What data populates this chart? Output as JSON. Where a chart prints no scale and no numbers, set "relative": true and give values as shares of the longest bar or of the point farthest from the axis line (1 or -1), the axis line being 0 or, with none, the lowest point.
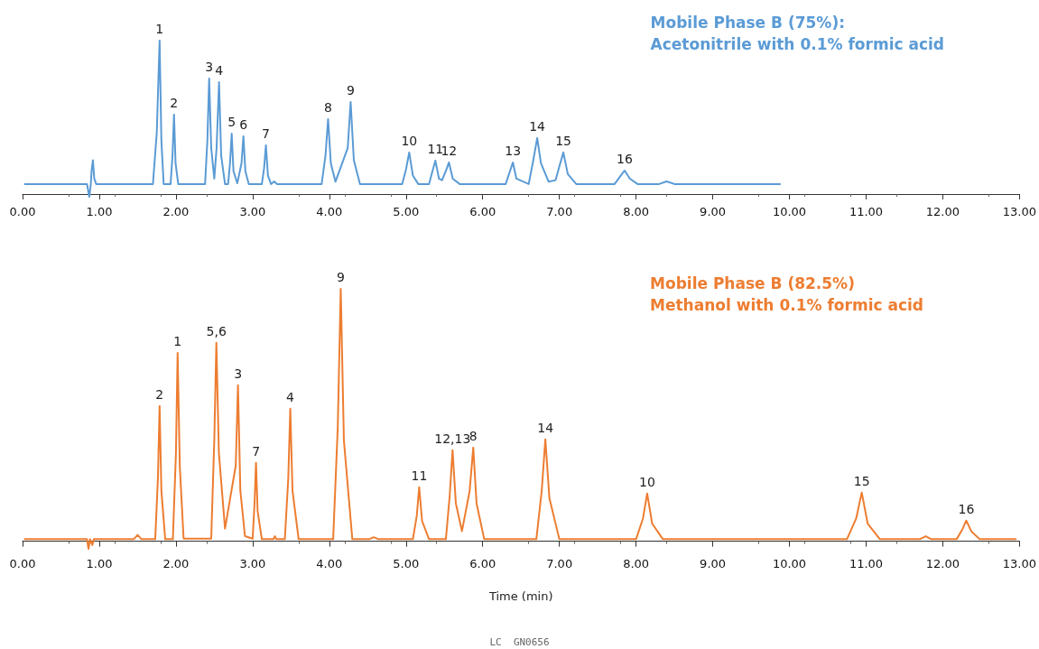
{
  "chart_data": [
    {
      "type": "line",
      "relative": true,
      "marker": "none",
      "legend": "top right",
      "xlim": [
        0,
        13
      ],
      "xticks": [
        {
          "value": 0,
          "label": "0.00"
        },
        {
          "value": 1,
          "label": "1.00"
        },
        {
          "value": 2,
          "label": "2.00"
        },
        {
          "value": 3,
          "label": "3.00"
        },
        {
          "value": 4,
          "label": "4.00"
        },
        {
          "value": 5,
          "label": "5.00"
        },
        {
          "value": 6,
          "label": "6.00"
        },
        {
          "value": 7,
          "label": "7.00"
        },
        {
          "value": 8,
          "label": "8.00"
        },
        {
          "value": 9,
          "label": "9.00"
        },
        {
          "value": 10,
          "label": "10.00"
        },
        {
          "value": 11,
          "label": "11.00"
        },
        {
          "value": 12,
          "label": "12.00"
        },
        {
          "value": 13,
          "label": "13.00"
        }
      ],
      "series": [
        {
          "name": "Mobile Phase B (75%):\nAcetonitrile with 0.1% formic acid",
          "color": "#5b9bd5",
          "x": [
            0.02,
            0.84,
            0.87,
            0.89,
            0.9,
            0.917,
            0.935,
            0.96,
            1.7,
            1.75,
            1.787,
            1.81,
            1.84,
            1.93,
            1.955,
            1.975,
            1.995,
            2.03,
            2.38,
            2.41,
            2.433,
            2.46,
            2.5,
            2.53,
            2.562,
            2.59,
            2.64,
            2.68,
            2.705,
            2.727,
            2.75,
            2.8,
            2.855,
            2.88,
            2.905,
            2.95,
            3.12,
            3.15,
            3.173,
            3.2,
            3.24,
            3.28,
            3.32,
            3.9,
            3.95,
            3.984,
            4.02,
            4.08,
            4.24,
            4.278,
            4.32,
            4.4,
            4.95,
            5.0,
            5.042,
            5.09,
            5.16,
            5.3,
            5.34,
            5.383,
            5.43,
            5.47,
            5.52,
            5.56,
            5.61,
            5.7,
            6.3,
            6.35,
            6.394,
            6.44,
            6.6,
            6.66,
            6.711,
            6.76,
            6.86,
            6.95,
            7.0,
            7.052,
            7.11,
            7.22,
            7.72,
            7.8,
            7.851,
            7.92,
            8.02,
            8.3,
            8.4,
            8.5,
            9.885
          ],
          "values": [
            0.065,
            0.065,
            -0.018,
            0.065,
            0.15,
            0.22,
            0.1,
            0.065,
            0.065,
            0.4,
            1.0,
            0.35,
            0.065,
            0.065,
            0.25,
            0.518,
            0.2,
            0.065,
            0.065,
            0.35,
            0.753,
            0.3,
            0.1,
            0.3,
            0.729,
            0.25,
            0.065,
            0.065,
            0.2,
            0.394,
            0.15,
            0.07,
            0.2,
            0.376,
            0.15,
            0.065,
            0.065,
            0.17,
            0.318,
            0.12,
            0.065,
            0.082,
            0.065,
            0.065,
            0.25,
            0.488,
            0.2,
            0.08,
            0.3,
            0.6,
            0.22,
            0.065,
            0.065,
            0.16,
            0.271,
            0.12,
            0.065,
            0.065,
            0.14,
            0.218,
            0.1,
            0.09,
            0.15,
            0.206,
            0.1,
            0.065,
            0.065,
            0.14,
            0.206,
            0.1,
            0.065,
            0.22,
            0.365,
            0.2,
            0.08,
            0.09,
            0.18,
            0.271,
            0.13,
            0.065,
            0.065,
            0.12,
            0.153,
            0.1,
            0.065,
            0.065,
            0.082,
            0.065,
            0.065
          ]
        }
      ],
      "annotations": [
        {
          "text": "1",
          "x": 1.787,
          "y": 1.0
        },
        {
          "text": "2",
          "x": 1.975,
          "y": 0.518
        },
        {
          "text": "3",
          "x": 2.433,
          "y": 0.753
        },
        {
          "text": "4",
          "x": 2.562,
          "y": 0.729
        },
        {
          "text": "5",
          "x": 2.727,
          "y": 0.394
        },
        {
          "text": "6",
          "x": 2.88,
          "y": 0.376
        },
        {
          "text": "7",
          "x": 3.173,
          "y": 0.318
        },
        {
          "text": "8",
          "x": 3.984,
          "y": 0.488
        },
        {
          "text": "9",
          "x": 4.278,
          "y": 0.6
        },
        {
          "text": "10",
          "x": 5.042,
          "y": 0.271
        },
        {
          "text": "11",
          "x": 5.383,
          "y": 0.218
        },
        {
          "text": "12",
          "x": 5.56,
          "y": 0.206
        },
        {
          "text": "13",
          "x": 6.394,
          "y": 0.206
        },
        {
          "text": "14",
          "x": 6.711,
          "y": 0.365
        },
        {
          "text": "15",
          "x": 7.052,
          "y": 0.271
        },
        {
          "text": "16",
          "x": 7.851,
          "y": 0.153
        }
      ]
    },
    {
      "type": "line",
      "relative": true,
      "marker": "none",
      "legend": "top right",
      "xlim": [
        0,
        13
      ],
      "xlabel": "Time (min)",
      "xticks": [
        {
          "value": 0,
          "label": "0.00"
        },
        {
          "value": 1,
          "label": "1.00"
        },
        {
          "value": 2,
          "label": "2.00"
        },
        {
          "value": 3,
          "label": "3.00"
        },
        {
          "value": 4,
          "label": "4.00"
        },
        {
          "value": 5,
          "label": "5.00"
        },
        {
          "value": 6,
          "label": "6.00"
        },
        {
          "value": 7,
          "label": "7.00"
        },
        {
          "value": 8,
          "label": "8.00"
        },
        {
          "value": 9,
          "label": "9.00"
        },
        {
          "value": 10,
          "label": "10.00"
        },
        {
          "value": 11,
          "label": "11.00"
        },
        {
          "value": 12,
          "label": "12.00"
        },
        {
          "value": 13,
          "label": "13.00"
        }
      ],
      "series": [
        {
          "name": "Mobile Phase B (82.5%)\nMethanol with 0.1% formic acid",
          "color": "#ed7d31",
          "x": [
            0.02,
            0.84,
            0.86,
            0.88,
            0.91,
            0.93,
            1.45,
            1.5,
            1.55,
            1.73,
            1.765,
            1.787,
            1.81,
            1.86,
            1.96,
            2.0,
            2.022,
            2.05,
            2.1,
            2.46,
            2.5,
            2.527,
            2.56,
            2.64,
            2.78,
            2.809,
            2.84,
            2.9,
            3.0,
            3.025,
            3.044,
            3.065,
            3.12,
            3.27,
            3.29,
            3.31,
            3.42,
            3.465,
            3.491,
            3.52,
            3.6,
            4.05,
            4.11,
            4.149,
            4.19,
            4.3,
            4.52,
            4.58,
            4.64,
            5.09,
            5.14,
            5.172,
            5.21,
            5.3,
            5.52,
            5.57,
            5.607,
            5.65,
            5.73,
            5.83,
            5.877,
            5.92,
            6.02,
            6.7,
            6.77,
            6.817,
            6.87,
            7.0,
            8.0,
            8.09,
            8.145,
            8.21,
            8.35,
            10.75,
            10.87,
            10.943,
            11.02,
            11.18,
            11.7,
            11.777,
            11.85,
            12.18,
            12.26,
            12.306,
            12.37,
            12.48,
            12.96
          ],
          "values": [
            0.008,
            0.008,
            -0.03,
            0.008,
            -0.015,
            0.008,
            0.008,
            0.025,
            0.008,
            0.008,
            0.25,
            0.536,
            0.2,
            0.008,
            0.008,
            0.35,
            0.746,
            0.3,
            0.01,
            0.01,
            0.4,
            0.786,
            0.35,
            0.05,
            0.3,
            0.618,
            0.2,
            0.02,
            0.01,
            0.15,
            0.311,
            0.12,
            0.008,
            0.008,
            0.02,
            0.008,
            0.008,
            0.25,
            0.525,
            0.2,
            0.008,
            0.008,
            0.45,
            1.0,
            0.4,
            0.008,
            0.008,
            0.016,
            0.008,
            0.008,
            0.1,
            0.214,
            0.08,
            0.008,
            0.008,
            0.18,
            0.361,
            0.15,
            0.04,
            0.2,
            0.371,
            0.15,
            0.008,
            0.008,
            0.2,
            0.404,
            0.17,
            0.008,
            0.008,
            0.09,
            0.189,
            0.07,
            0.008,
            0.008,
            0.09,
            0.193,
            0.07,
            0.008,
            0.008,
            0.02,
            0.008,
            0.008,
            0.05,
            0.082,
            0.04,
            0.008,
            0.008
          ]
        }
      ],
      "annotations": [
        {
          "text": "2",
          "x": 1.787,
          "y": 0.536
        },
        {
          "text": "1",
          "x": 2.022,
          "y": 0.746
        },
        {
          "text": "5,6",
          "x": 2.527,
          "y": 0.786
        },
        {
          "text": "3",
          "x": 2.809,
          "y": 0.618
        },
        {
          "text": "7",
          "x": 3.044,
          "y": 0.311
        },
        {
          "text": "4",
          "x": 3.491,
          "y": 0.525
        },
        {
          "text": "9",
          "x": 4.149,
          "y": 1.0
        },
        {
          "text": "11",
          "x": 5.172,
          "y": 0.214
        },
        {
          "text": "12,13",
          "x": 5.607,
          "y": 0.361
        },
        {
          "text": "8",
          "x": 5.877,
          "y": 0.371
        },
        {
          "text": "14",
          "x": 6.817,
          "y": 0.404
        },
        {
          "text": "10",
          "x": 8.145,
          "y": 0.189
        },
        {
          "text": "15",
          "x": 10.943,
          "y": 0.193
        },
        {
          "text": "16",
          "x": 12.306,
          "y": 0.082
        },
        "LC  GN0656"
      ]
    }
  ]
}
